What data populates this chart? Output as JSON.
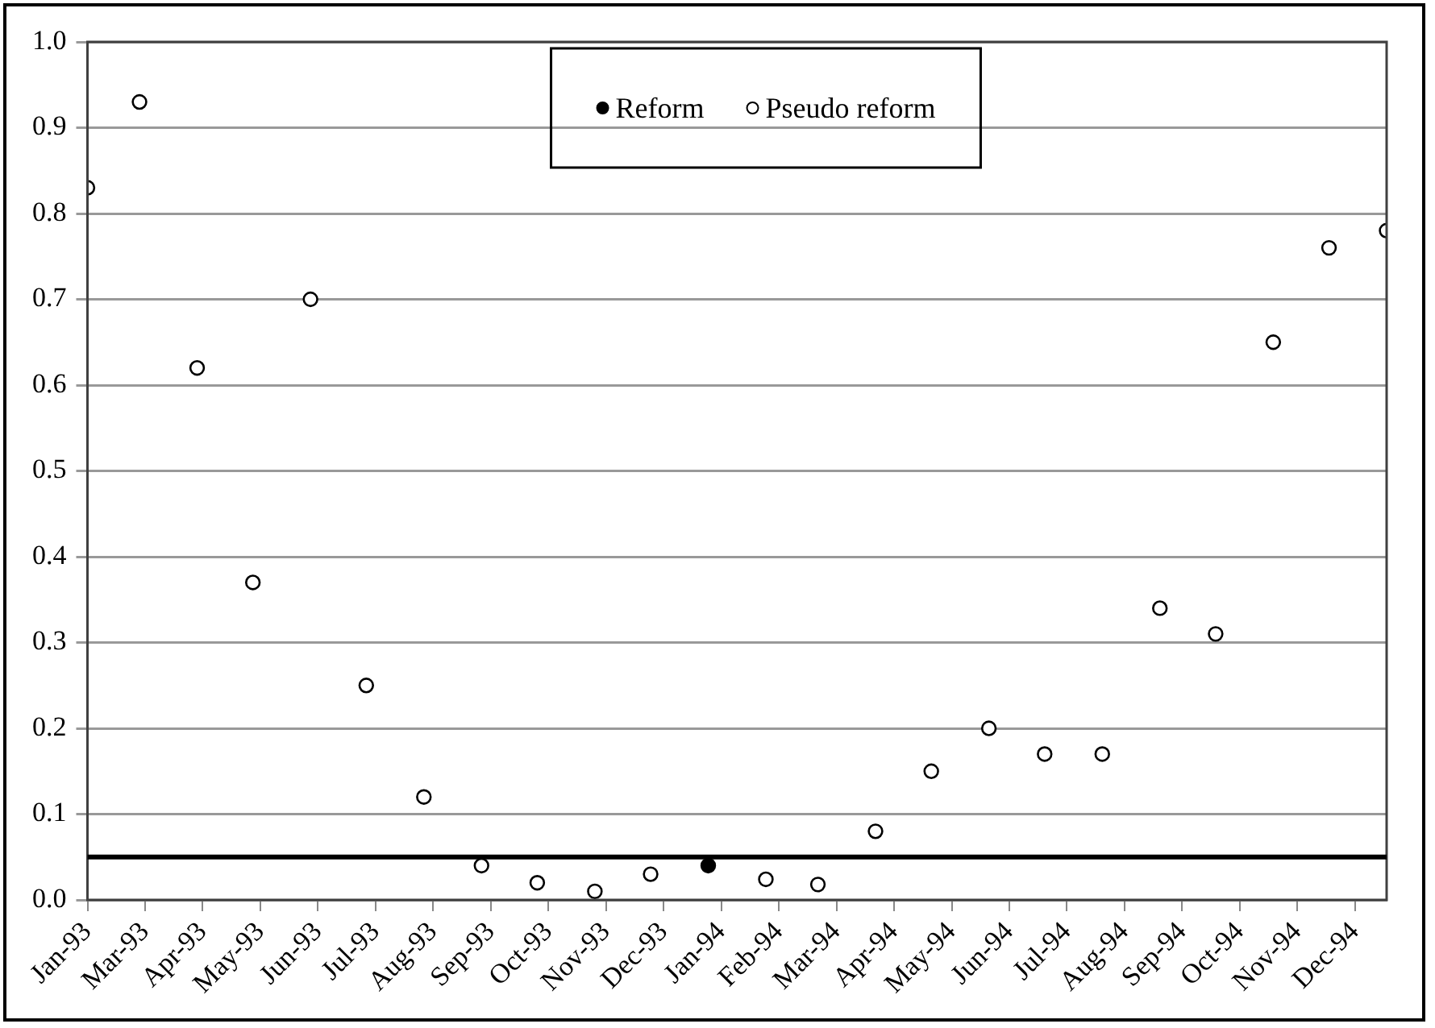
{
  "chart_data": {
    "type": "scatter",
    "x": [
      "1993-01-31",
      "1993-02-28",
      "1993-03-31",
      "1993-04-30",
      "1993-05-31",
      "1993-06-30",
      "1993-07-31",
      "1993-08-31",
      "1993-09-30",
      "1993-10-31",
      "1993-11-30",
      "1994-01-31",
      "1994-02-28",
      "1994-03-31",
      "1994-04-30",
      "1994-05-31",
      "1994-06-30",
      "1994-07-31",
      "1994-08-31",
      "1994-09-30",
      "1994-10-31",
      "1994-11-30",
      "1994-12-31"
    ],
    "series": [
      {
        "name": "Reform",
        "color": "#000000",
        "x": [
          "1993-12-31"
        ],
        "values": [
          0.04
        ]
      },
      {
        "name": "Pseudo reform",
        "color": "#ffffff",
        "values": [
          0.83,
          0.93,
          0.62,
          0.37,
          0.7,
          0.25,
          0.12,
          0.04,
          0.02,
          0.01,
          0.03,
          0.024,
          0.018,
          0.08,
          0.15,
          0.2,
          0.17,
          0.17,
          0.34,
          0.31,
          0.65,
          0.76,
          0.78
        ]
      }
    ],
    "xlim": [
      "1993-01-31",
      "1994-12-31"
    ],
    "xticks": [
      {
        "value": "1993-01-31",
        "label": "Jan-93"
      },
      {
        "value": "1993-03-03",
        "label": "Mar-93"
      },
      {
        "value": "1993-04-03",
        "label": "Apr-93"
      },
      {
        "value": "1993-05-04",
        "label": "May-93"
      },
      {
        "value": "1993-06-04",
        "label": "Jun-93"
      },
      {
        "value": "1993-07-05",
        "label": "Jul-93"
      },
      {
        "value": "1993-08-05",
        "label": "Aug-93"
      },
      {
        "value": "1993-09-05",
        "label": "Sep-93"
      },
      {
        "value": "1993-10-06",
        "label": "Oct-93"
      },
      {
        "value": "1993-11-06",
        "label": "Nov-93"
      },
      {
        "value": "1993-12-07",
        "label": "Dec-93"
      },
      {
        "value": "1994-01-07",
        "label": "Jan-94"
      },
      {
        "value": "1994-02-07",
        "label": "Feb-94"
      },
      {
        "value": "1994-03-10",
        "label": "Mar-94"
      },
      {
        "value": "1994-04-10",
        "label": "Apr-94"
      },
      {
        "value": "1994-05-11",
        "label": "May-94"
      },
      {
        "value": "1994-06-11",
        "label": "Jun-94"
      },
      {
        "value": "1994-07-12",
        "label": "Jul-94"
      },
      {
        "value": "1994-08-12",
        "label": "Aug-94"
      },
      {
        "value": "1994-09-12",
        "label": "Sep-94"
      },
      {
        "value": "1994-10-13",
        "label": "Oct-94"
      },
      {
        "value": "1994-11-13",
        "label": "Nov-94"
      },
      {
        "value": "1994-12-14",
        "label": "Dec-94"
      }
    ],
    "ylim": [
      0,
      1.0
    ],
    "yticks": [
      {
        "value": 0,
        "label": "0.0"
      },
      {
        "value": 0.1,
        "label": "0.1"
      },
      {
        "value": 0.2,
        "label": "0.2"
      },
      {
        "value": 0.3,
        "label": "0.3"
      },
      {
        "value": 0.4,
        "label": "0.4"
      },
      {
        "value": 0.5,
        "label": "0.5"
      },
      {
        "value": 0.6,
        "label": "0.6"
      },
      {
        "value": 0.7,
        "label": "0.7"
      },
      {
        "value": 0.8,
        "label": "0.8"
      },
      {
        "value": 0.9,
        "label": "0.9"
      },
      {
        "value": 1.0,
        "label": "1.0"
      }
    ],
    "ref_lines": [
      {
        "axis": "y",
        "value": 0.05,
        "color": "#000000"
      }
    ],
    "grid": "y",
    "legend": "top",
    "marker": "circle"
  }
}
